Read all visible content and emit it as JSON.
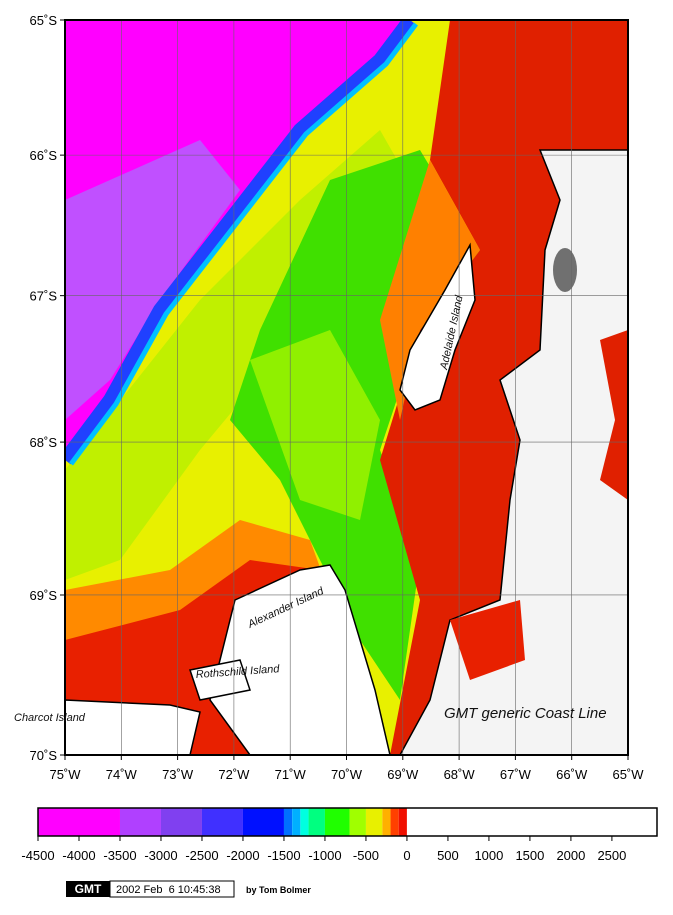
{
  "map": {
    "lon_lim": [
      -75,
      -65
    ],
    "lat_lim": [
      -65,
      -70
    ],
    "lon_ticks": [
      {
        "value": -75,
        "label": "75˚W"
      },
      {
        "value": -74,
        "label": "74˚W"
      },
      {
        "value": -73,
        "label": "73˚W"
      },
      {
        "value": -72,
        "label": "72˚W"
      },
      {
        "value": -71,
        "label": "71˚W"
      },
      {
        "value": -70,
        "label": "70˚W"
      },
      {
        "value": -69,
        "label": "69˚W"
      },
      {
        "value": -68,
        "label": "68˚W"
      },
      {
        "value": -67,
        "label": "67˚W"
      },
      {
        "value": -66,
        "label": "66˚W"
      },
      {
        "value": -65,
        "label": "65˚W"
      }
    ],
    "lat_ticks": [
      {
        "value": -65,
        "label": "65˚S"
      },
      {
        "value": -66,
        "label": "66˚S"
      },
      {
        "value": -67,
        "label": "67˚S"
      },
      {
        "value": -68,
        "label": "68˚S"
      },
      {
        "value": -69,
        "label": "69˚S"
      },
      {
        "value": -70,
        "label": "70˚S"
      }
    ],
    "labels": {
      "adelaide": "Adelaide Island",
      "alexander": "Alexander Island",
      "rothschild": "Rothschild Island",
      "charcot": "Charcot Island",
      "coastline": "GMT generic Coast Line"
    }
  },
  "colorbar": {
    "lim": [
      -4500,
      3050
    ],
    "ticks": [
      -4500,
      -4000,
      -3500,
      -3000,
      -2500,
      -2000,
      -1500,
      -1000,
      -500,
      0,
      500,
      1000,
      1500,
      2000,
      2500
    ],
    "stops": [
      {
        "value": -4500,
        "color": "#ff00ff"
      },
      {
        "value": -3500,
        "color": "#b040ff"
      },
      {
        "value": -3000,
        "color": "#8040f0"
      },
      {
        "value": -2500,
        "color": "#4030ff"
      },
      {
        "value": -2000,
        "color": "#0010ff"
      },
      {
        "value": -1500,
        "color": "#0070ff"
      },
      {
        "value": -1400,
        "color": "#00b0ff"
      },
      {
        "value": -1300,
        "color": "#00ffe0"
      },
      {
        "value": -1200,
        "color": "#00ff80"
      },
      {
        "value": -1000,
        "color": "#20ff00"
      },
      {
        "value": -700,
        "color": "#a0ff00"
      },
      {
        "value": -500,
        "color": "#e8f000"
      },
      {
        "value": -300,
        "color": "#ffb000"
      },
      {
        "value": -200,
        "color": "#ff4000"
      },
      {
        "value": -100,
        "color": "#f01000"
      },
      {
        "value": 0,
        "color": "#ffffff"
      }
    ]
  },
  "footer": {
    "logo": "GMT",
    "timestamp": "2002 Feb  6 10:45:38",
    "author": "by Tom Bolmer"
  }
}
